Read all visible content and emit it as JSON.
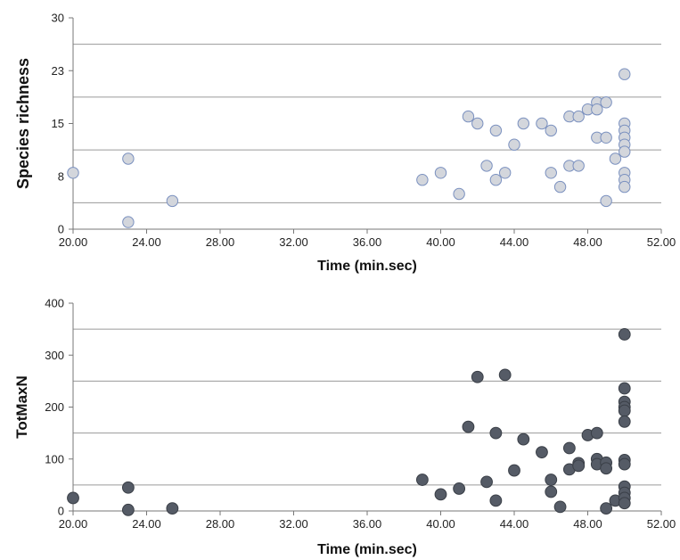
{
  "chart_data": [
    {
      "type": "scatter",
      "xlabel": "Time (min.sec)",
      "ylabel": "Species richness",
      "xlim": [
        20,
        52
      ],
      "ylim": [
        0,
        30
      ],
      "xticks": [
        "20.00",
        "24.00",
        "28.00",
        "32.00",
        "36.00",
        "40.00",
        "44.00",
        "48.00",
        "52.00"
      ],
      "yticks": [
        "0",
        "8",
        "15",
        "23",
        "30"
      ],
      "grid": "horizontal",
      "marker_fill": "#d3d6dc",
      "marker_stroke": "#7a90bf",
      "points": [
        [
          20.0,
          8.0
        ],
        [
          23.0,
          10.0
        ],
        [
          23.0,
          1.0
        ],
        [
          25.4,
          4.0
        ],
        [
          39.0,
          7.0
        ],
        [
          40.0,
          8.0
        ],
        [
          41.0,
          5.0
        ],
        [
          41.5,
          16.0
        ],
        [
          42.0,
          15.0
        ],
        [
          42.5,
          9.0
        ],
        [
          43.0,
          14.0
        ],
        [
          43.0,
          7.0
        ],
        [
          43.5,
          8.0
        ],
        [
          44.0,
          12.0
        ],
        [
          44.5,
          15.0
        ],
        [
          45.5,
          15.0
        ],
        [
          46.0,
          14.0
        ],
        [
          46.0,
          8.0
        ],
        [
          46.5,
          6.0
        ],
        [
          47.0,
          16.0
        ],
        [
          47.0,
          9.0
        ],
        [
          47.5,
          16.0
        ],
        [
          47.5,
          9.0
        ],
        [
          48.0,
          17.0
        ],
        [
          48.5,
          18.0
        ],
        [
          48.5,
          17.0
        ],
        [
          48.5,
          13.0
        ],
        [
          49.0,
          18.0
        ],
        [
          49.0,
          13.0
        ],
        [
          49.0,
          4.0
        ],
        [
          49.5,
          10.0
        ],
        [
          50.0,
          22.0
        ],
        [
          50.0,
          15.0
        ],
        [
          50.0,
          14.0
        ],
        [
          50.0,
          13.0
        ],
        [
          50.0,
          12.0
        ],
        [
          50.0,
          11.0
        ],
        [
          50.0,
          8.0
        ],
        [
          50.0,
          7.0
        ],
        [
          50.0,
          6.0
        ]
      ]
    },
    {
      "type": "scatter",
      "xlabel": "Time (min.sec)",
      "ylabel": "TotMaxN",
      "xlim": [
        20,
        52
      ],
      "ylim": [
        0,
        400
      ],
      "xticks": [
        "20.00",
        "24.00",
        "28.00",
        "32.00",
        "36.00",
        "40.00",
        "44.00",
        "48.00",
        "52.00"
      ],
      "yticks": [
        "0",
        "100",
        "200",
        "300",
        "400"
      ],
      "grid": "horizontal",
      "marker_fill": "#555b66",
      "marker_stroke": "#3a3f47",
      "points": [
        [
          20.0,
          25
        ],
        [
          23.0,
          45
        ],
        [
          23.0,
          2
        ],
        [
          25.4,
          5
        ],
        [
          39.0,
          60
        ],
        [
          40.0,
          32
        ],
        [
          41.0,
          43
        ],
        [
          41.5,
          162
        ],
        [
          42.0,
          258
        ],
        [
          42.5,
          56
        ],
        [
          43.0,
          150
        ],
        [
          43.0,
          20
        ],
        [
          43.5,
          262
        ],
        [
          44.0,
          78
        ],
        [
          44.5,
          138
        ],
        [
          45.5,
          113
        ],
        [
          46.0,
          60
        ],
        [
          46.0,
          37
        ],
        [
          46.5,
          8
        ],
        [
          47.0,
          121
        ],
        [
          47.0,
          80
        ],
        [
          47.5,
          92
        ],
        [
          47.5,
          87
        ],
        [
          48.0,
          146
        ],
        [
          48.5,
          150
        ],
        [
          48.5,
          100
        ],
        [
          48.5,
          90
        ],
        [
          49.0,
          93
        ],
        [
          49.0,
          82
        ],
        [
          49.0,
          5
        ],
        [
          49.5,
          20
        ],
        [
          50.0,
          340
        ],
        [
          50.0,
          236
        ],
        [
          50.0,
          210
        ],
        [
          50.0,
          200
        ],
        [
          50.0,
          193
        ],
        [
          50.0,
          172
        ],
        [
          50.0,
          98
        ],
        [
          50.0,
          90
        ],
        [
          50.0,
          47
        ],
        [
          50.0,
          35
        ],
        [
          50.0,
          25
        ],
        [
          50.0,
          15
        ]
      ]
    }
  ]
}
